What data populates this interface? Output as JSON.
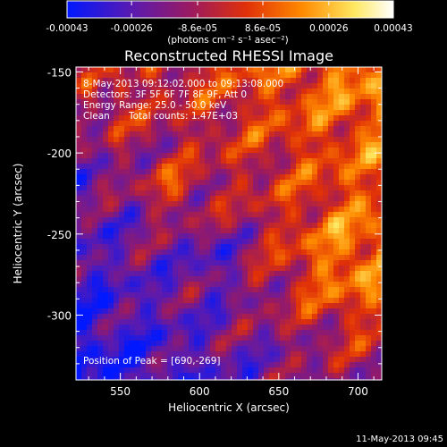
{
  "chart_data": {
    "type": "heatmap",
    "title": "Reconstructed RHESSI Image",
    "xlabel": "Heliocentric X (arcsec)",
    "ylabel": "Heliocentric Y (arcsec)",
    "xlim": [
      522,
      715
    ],
    "ylim": [
      -340,
      -147
    ],
    "x_ticks": [
      550,
      600,
      650,
      700
    ],
    "y_ticks": [
      -150,
      -200,
      -250,
      -300
    ],
    "x_tick_labels": [
      "550",
      "600",
      "650",
      "700"
    ],
    "y_tick_labels": [
      "-150",
      "-200",
      "-250",
      "-300"
    ],
    "colorbar": {
      "min": -0.00043,
      "max": 0.00043,
      "ticks": [
        -0.00043,
        -0.00026,
        -8.6e-05,
        8.6e-05,
        0.00026,
        0.00043
      ],
      "tick_labels": [
        "-0.00043",
        "-0.00026",
        "-8.6e-05",
        "8.6e-05",
        "0.00026",
        "0.00043"
      ],
      "unit_label": "(photons cm⁻² s⁻¹ asec⁻²)",
      "colors": [
        "#0018ff",
        "#5a1ab0",
        "#9b1a60",
        "#e03008",
        "#ff8a00",
        "#ffe860",
        "#ffffff"
      ]
    },
    "peak": [
      690,
      -269
    ],
    "annotations": {
      "time_range": "8-May-2013 09:12:02.000 to 09:13:08.000",
      "detectors": "Detectors: 3F 5F 6F 7F 8F 9F, Att 0",
      "energy_range": "Energy Range: 25.0 - 50.0 keV",
      "method": "Clean",
      "total_counts": "Total counts: 1.47E+03",
      "peak_label": "Position of Peak = [690,-269]"
    },
    "timestamp": "11-May-2013 09:45"
  }
}
